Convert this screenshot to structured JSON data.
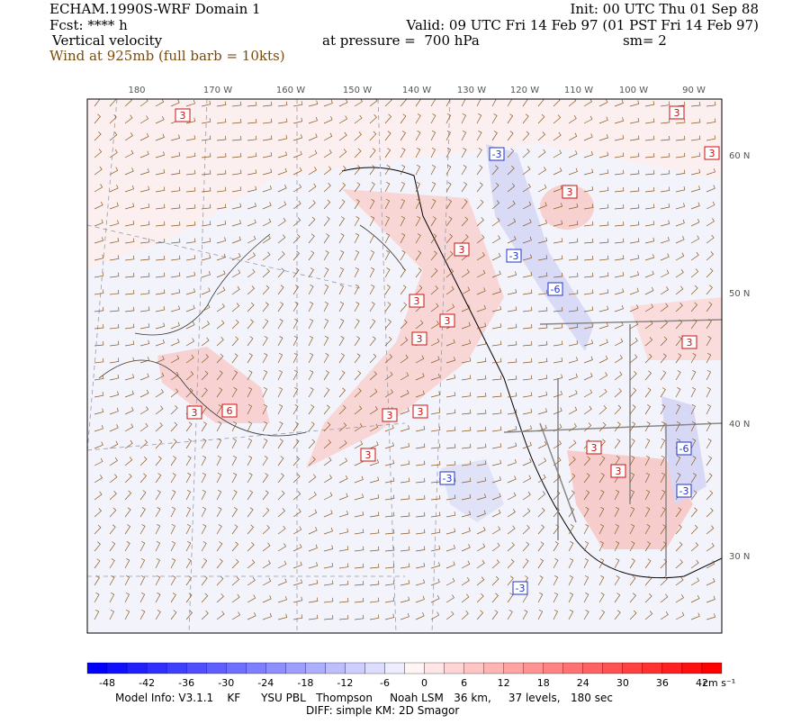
{
  "header": {
    "model": "ECHAM.1990S-WRF Domain 1",
    "init": "Init: 00 UTC Thu 01 Sep 88",
    "fcst": "Fcst: **** h",
    "valid": "Valid: 09 UTC Fri 14 Feb 97 (01 PST Fri 14 Feb 97)",
    "field": "Vertical velocity",
    "pressure": "at pressure =  700 hPa",
    "smoothing": "sm= 2",
    "wind": "Wind at 925mb (full barb = 10kts)"
  },
  "map": {
    "longitudes": [
      "180",
      "170 W",
      "160 W",
      "150 W",
      "140 W",
      "130 W",
      "120 W",
      "110 W",
      "100 W",
      "90 W"
    ],
    "latitudes": [
      "60 N",
      "50 N",
      "40 N",
      "30 N"
    ],
    "contour_labels": [
      "3",
      "3",
      "3",
      "3",
      "3",
      "3",
      "3",
      "3",
      "3",
      "3",
      "6",
      "3",
      "3",
      "3",
      "3",
      "3",
      "-3",
      "-3",
      "-3",
      "-3",
      "-3",
      "-6",
      "-6"
    ]
  },
  "colorbar": {
    "labels": [
      "-48",
      "-42",
      "-36",
      "-30",
      "-24",
      "-18",
      "-12",
      "-6",
      "0",
      "6",
      "12",
      "18",
      "24",
      "30",
      "36",
      "42"
    ],
    "unit": "cm s⁻¹"
  },
  "footer": {
    "model_info": "Model Info: V3.1.1    KF      YSU PBL   Thompson     Noah LSM   36 km,     37 levels,   180 sec",
    "diff": "DIFF: simple KM: 2D Smagor"
  }
}
